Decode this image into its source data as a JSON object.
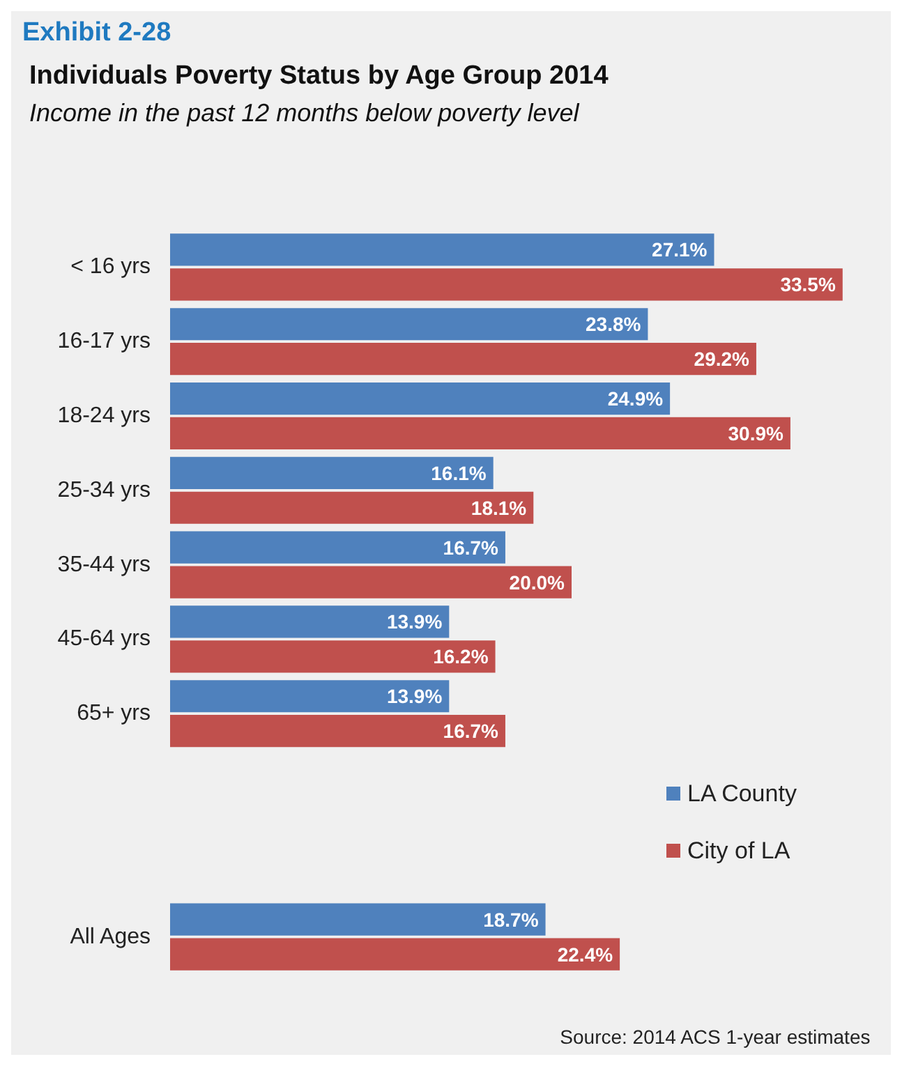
{
  "chart_data": {
    "type": "bar",
    "orientation": "horizontal",
    "title": "Individuals Poverty Status by Age Group 2014",
    "subtitle": "Income in the past 12 months below poverty level",
    "categories": [
      "< 16 yrs",
      "16-17 yrs",
      "18-24 yrs",
      "25-34 yrs",
      "35-44 yrs",
      "45-64 yrs",
      "65+ yrs",
      null,
      null,
      "All Ages"
    ],
    "series": [
      {
        "name": "LA County",
        "color": "#4f81bd",
        "values": [
          27.1,
          23.8,
          24.9,
          16.1,
          16.7,
          13.9,
          13.9,
          null,
          null,
          18.7
        ],
        "value_labels": [
          "27.1%",
          "23.8%",
          "24.9%",
          "16.1%",
          "16.7%",
          "13.9%",
          "13.9%",
          null,
          null,
          "18.7%"
        ]
      },
      {
        "name": "City of LA",
        "color": "#c0504d",
        "values": [
          33.5,
          29.2,
          30.9,
          18.1,
          20.0,
          16.2,
          16.7,
          null,
          null,
          22.4
        ],
        "value_labels": [
          "33.5%",
          "29.2%",
          "30.9%",
          "18.1%",
          "20.0%",
          "16.2%",
          "16.7%",
          null,
          null,
          "22.4%"
        ]
      }
    ],
    "legend": "right",
    "annotations": [
      "Exhibit 2-28",
      "Source: 2014 ACS 1-year estimates"
    ]
  }
}
